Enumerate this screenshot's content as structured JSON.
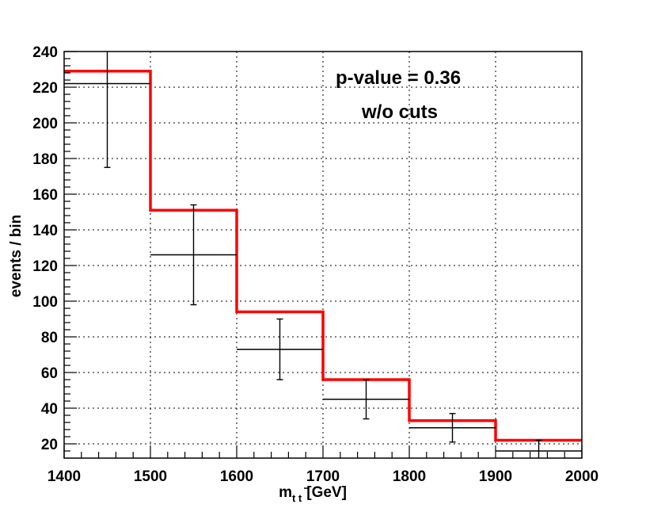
{
  "chart_data": {
    "type": "histogram",
    "title": "",
    "xlabel": {
      "main": "m",
      "subscript": "t t",
      "unit": "[GeV]"
    },
    "ylabel": "events / bin",
    "xlim": [
      1400,
      2000
    ],
    "ylim": [
      12,
      240
    ],
    "grid": true,
    "x_ticks": [
      1400,
      1500,
      1600,
      1700,
      1800,
      1900,
      2000
    ],
    "y_ticks": [
      20,
      40,
      60,
      80,
      100,
      120,
      140,
      160,
      180,
      200,
      220,
      240
    ],
    "bin_edges": [
      1400,
      1500,
      1600,
      1700,
      1800,
      1900,
      2000
    ],
    "series": [
      {
        "style": "step-line",
        "color": "#ff0000",
        "values": [
          229,
          151,
          94,
          56,
          33,
          22
        ]
      },
      {
        "style": "points-with-error-bars",
        "color": "#000000",
        "x": [
          1450,
          1550,
          1650,
          1750,
          1850,
          1950
        ],
        "values": [
          222,
          126,
          73,
          45,
          29,
          16
        ],
        "errors": [
          47,
          28,
          17,
          11,
          8,
          6
        ]
      }
    ],
    "annotations": [
      {
        "text": "p-value = 0.36"
      },
      {
        "text": "w/o cuts"
      }
    ]
  }
}
